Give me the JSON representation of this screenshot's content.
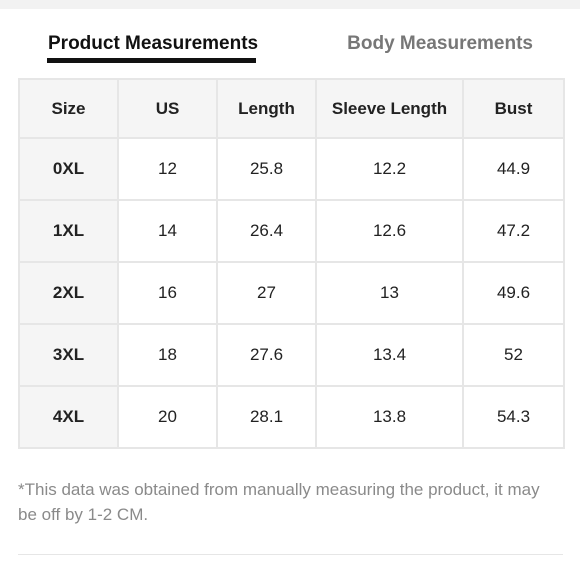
{
  "tabs": {
    "product_label": "Product Measurements",
    "body_label": "Body Measurements"
  },
  "table": {
    "headers": [
      "Size",
      "US",
      "Length",
      "Sleeve Length",
      "Bust"
    ],
    "rows": [
      [
        "0XL",
        "12",
        "25.8",
        "12.2",
        "44.9"
      ],
      [
        "1XL",
        "14",
        "26.4",
        "12.6",
        "47.2"
      ],
      [
        "2XL",
        "16",
        "27",
        "13",
        "49.6"
      ],
      [
        "3XL",
        "18",
        "27.6",
        "13.4",
        "52"
      ],
      [
        "4XL",
        "20",
        "28.1",
        "13.8",
        "54.3"
      ]
    ]
  },
  "note": "*This data was obtained from manually measuring the product, it may be off by 1-2 CM.",
  "colors": {
    "active_tab": "#111111",
    "inactive_tab": "#777777",
    "header_bg": "#f5f5f5",
    "border": "#e6e6e6",
    "note_text": "#8a8a8a"
  }
}
